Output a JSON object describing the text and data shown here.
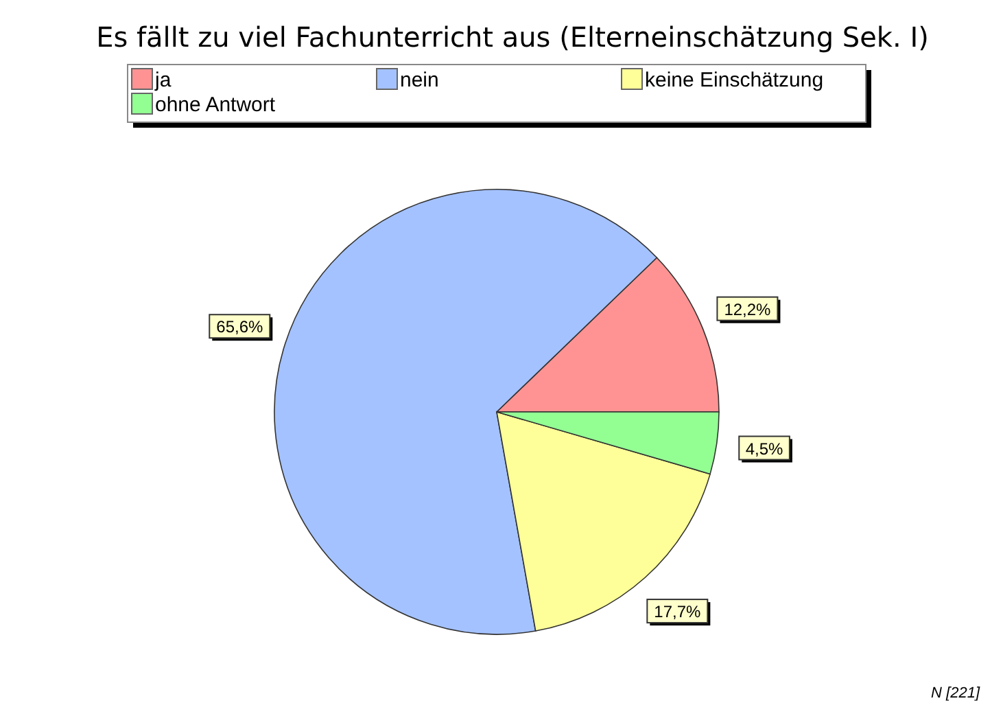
{
  "chart_data": {
    "type": "pie",
    "title": "Es fällt zu viel Fachunterricht aus (Elterneinschätzung Sek. I)",
    "categories": [
      "ja",
      "nein",
      "keine Einschätzung",
      "ohne Antwort"
    ],
    "values": [
      12.2,
      65.6,
      17.7,
      4.5
    ],
    "colors": [
      "#ff9393",
      "#a4c2ff",
      "#ffff99",
      "#93ff93"
    ],
    "value_labels": [
      "12,2%",
      "65,6%",
      "17,7%",
      "4,5%"
    ],
    "legend": "top",
    "annotations": [
      "N [221]"
    ]
  }
}
